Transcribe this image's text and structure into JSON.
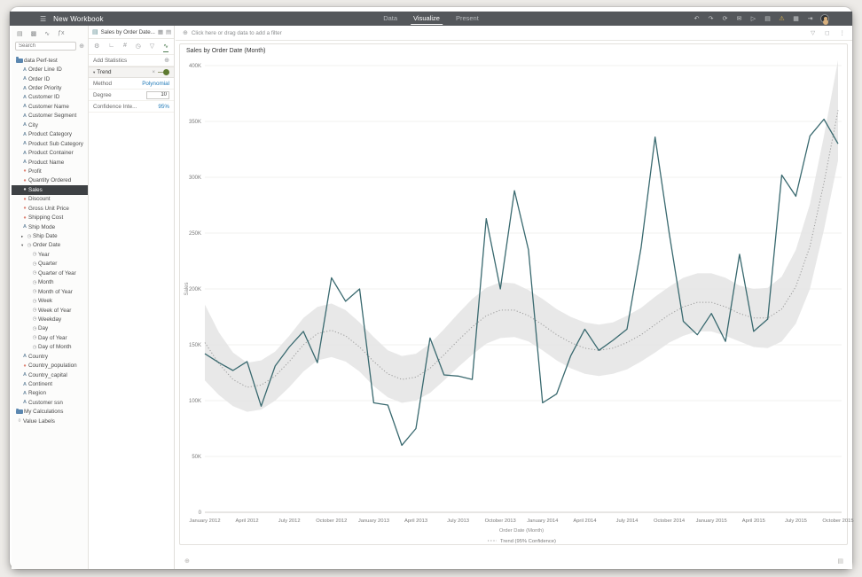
{
  "window": {
    "title": "New Workbook"
  },
  "navbar": {
    "menu_icon": "hamburger-menu-icon",
    "tabs": [
      {
        "label": "Data",
        "active": false
      },
      {
        "label": "Visualize",
        "active": true
      },
      {
        "label": "Present",
        "active": false
      }
    ],
    "icons": [
      {
        "name": "undo-icon",
        "glyph": "↶"
      },
      {
        "name": "redo-icon",
        "glyph": "↷"
      },
      {
        "name": "refresh-icon",
        "glyph": "⟳"
      },
      {
        "name": "mail-icon",
        "glyph": "✉"
      },
      {
        "name": "play-icon",
        "glyph": "▷"
      },
      {
        "name": "save-icon",
        "glyph": "▤"
      },
      {
        "name": "alert-icon",
        "glyph": "⚠",
        "warn": true
      },
      {
        "name": "grid-icon",
        "glyph": "▦"
      },
      {
        "name": "export-icon",
        "glyph": "⇥"
      }
    ]
  },
  "left_panel": {
    "toolbar_icons": [
      {
        "name": "clipboard-icon",
        "glyph": "▤"
      },
      {
        "name": "bar-chart-icon",
        "glyph": "▩"
      },
      {
        "name": "trend-arrow-icon",
        "glyph": "∿"
      },
      {
        "name": "function-icon",
        "glyph": "ƒx"
      }
    ],
    "search": {
      "placeholder": "Search",
      "options_icon": "⊕"
    },
    "fields": [
      {
        "label": "data Perf-test",
        "type": "folder"
      },
      {
        "label": "Order Line ID",
        "type": "dim"
      },
      {
        "label": "Order ID",
        "type": "dim"
      },
      {
        "label": "Order Priority",
        "type": "dim"
      },
      {
        "label": "Customer ID",
        "type": "dim"
      },
      {
        "label": "Customer Name",
        "type": "dim"
      },
      {
        "label": "Customer Segment",
        "type": "dim"
      },
      {
        "label": "City",
        "type": "dim"
      },
      {
        "label": "Product Category",
        "type": "dim"
      },
      {
        "label": "Product Sub Category",
        "type": "dim"
      },
      {
        "label": "Product Container",
        "type": "dim"
      },
      {
        "label": "Product Name",
        "type": "dim"
      },
      {
        "label": "Profit",
        "type": "measure"
      },
      {
        "label": "Quantity Ordered",
        "type": "measure"
      },
      {
        "label": "Sales",
        "type": "measure",
        "selected": true
      },
      {
        "label": "Discount",
        "type": "measure"
      },
      {
        "label": "Gross Unit Price",
        "type": "measure"
      },
      {
        "label": "Shipping Cost",
        "type": "measure"
      },
      {
        "label": "Ship Mode",
        "type": "dim"
      },
      {
        "label": "Ship Date",
        "type": "date-collapsed"
      },
      {
        "label": "Order Date",
        "type": "date-expanded"
      },
      {
        "label": "Year",
        "type": "date-child"
      },
      {
        "label": "Quarter",
        "type": "date-child"
      },
      {
        "label": "Quarter of Year",
        "type": "date-child"
      },
      {
        "label": "Month",
        "type": "date-child"
      },
      {
        "label": "Month of Year",
        "type": "date-child"
      },
      {
        "label": "Week",
        "type": "date-child"
      },
      {
        "label": "Week of Year",
        "type": "date-child"
      },
      {
        "label": "Weekday",
        "type": "date-child"
      },
      {
        "label": "Day",
        "type": "date-child"
      },
      {
        "label": "Day of Year",
        "type": "date-child"
      },
      {
        "label": "Day of Month",
        "type": "date-child"
      },
      {
        "label": "Country",
        "type": "dim"
      },
      {
        "label": "Country_population",
        "type": "measure"
      },
      {
        "label": "Country_capital",
        "type": "dim"
      },
      {
        "label": "Continent",
        "type": "dim"
      },
      {
        "label": "Region",
        "type": "dim"
      },
      {
        "label": "Customer ssn",
        "type": "dim"
      },
      {
        "label": "My Calculations",
        "type": "folder"
      },
      {
        "label": "Value Labels",
        "type": "tag"
      }
    ]
  },
  "properties_panel": {
    "tab_title": "Sales by Order Date...",
    "tab_icons": [
      {
        "name": "chart-type-icon",
        "glyph": "▦"
      },
      {
        "name": "layout-panel-icon",
        "glyph": "▤"
      }
    ],
    "section_icons": [
      {
        "name": "general-settings-icon",
        "glyph": "⚙"
      },
      {
        "name": "axis-icon",
        "glyph": "∟"
      },
      {
        "name": "values-icon",
        "glyph": "#"
      },
      {
        "name": "date-format-icon",
        "glyph": "◷"
      },
      {
        "name": "filter-icon",
        "glyph": "▽"
      },
      {
        "name": "analytics-icon",
        "glyph": "∿",
        "active": true
      }
    ],
    "add_statistics_label": "Add Statistics",
    "add_icon": "⊕",
    "trend": {
      "label": "Trend",
      "expanded": true,
      "toggle_on": true,
      "delete_icon": "×"
    },
    "method": {
      "label": "Method",
      "value": "Polynomial"
    },
    "degree": {
      "label": "Degree",
      "value": "10"
    },
    "confidence": {
      "label": "Confidence Inte...",
      "value": "95%"
    }
  },
  "filter_bar": {
    "hint": "Click here or drag data to add a filter",
    "add_icon": "⊕",
    "right_icons": [
      {
        "name": "filter-options-icon",
        "glyph": "▽"
      },
      {
        "name": "maximize-icon",
        "glyph": "◻"
      },
      {
        "name": "more-menu-icon",
        "glyph": "⋮"
      }
    ]
  },
  "canvas_footer": {
    "add_canvas_icon": "⊕",
    "canvas_options_icon": "▤"
  },
  "chart_data": {
    "type": "line",
    "title": "Sales by Order Date (Month)",
    "xlabel": "Order Date (Month)",
    "ylabel": "Sales",
    "legend_label": "Trend (95% Confidence)",
    "legend_position": "bottom-center",
    "grid": "horizontal",
    "unit": "thousands of Sales (K)",
    "ylim_k": [
      0,
      400
    ],
    "y_tick_labels": [
      "400K",
      "350K",
      "300K",
      "250K",
      "200K",
      "150K",
      "100K",
      "50K",
      "0"
    ],
    "x": [
      "January 2012",
      "February 2012",
      "March 2012",
      "April 2012",
      "May 2012",
      "June 2012",
      "July 2012",
      "August 2012",
      "September 2012",
      "October 2012",
      "November 2012",
      "December 2012",
      "January 2013",
      "February 2013",
      "March 2013",
      "April 2013",
      "May 2013",
      "June 2013",
      "July 2013",
      "August 2013",
      "September 2013",
      "October 2013",
      "November 2013",
      "December 2013",
      "January 2014",
      "February 2014",
      "March 2014",
      "April 2014",
      "May 2014",
      "June 2014",
      "July 2014",
      "August 2014",
      "September 2014",
      "October 2014",
      "November 2014",
      "December 2014",
      "January 2015",
      "February 2015",
      "March 2015",
      "April 2015",
      "May 2015",
      "June 2015",
      "July 2015",
      "August 2015",
      "September 2015",
      "October 2015"
    ],
    "x_tick_labels": [
      "January 2012",
      "April 2012",
      "July 2012",
      "October 2012",
      "January 2013",
      "April 2013",
      "July 2013",
      "October 2013",
      "January 2014",
      "April 2014",
      "July 2014",
      "October 2014",
      "January 2015",
      "April 2015",
      "July 2015",
      "October 2015"
    ],
    "series": [
      {
        "name": "Sales",
        "style": "solid",
        "color": "#39696f",
        "values_k": [
          142,
          134,
          127,
          135,
          95,
          131,
          148,
          162,
          134,
          210,
          189,
          200,
          98,
          96,
          60,
          75,
          156,
          123,
          122,
          119,
          263,
          200,
          288,
          235,
          98,
          106,
          140,
          164,
          145,
          154,
          164,
          237,
          336,
          250,
          171,
          159,
          178,
          153,
          231,
          162,
          173,
          302,
          283,
          337,
          352,
          330
        ]
      },
      {
        "name": "Trend (Polynomial, degree 10)",
        "style": "dotted",
        "color": "#9b9b9b",
        "values_k": [
          152,
          133,
          119,
          112,
          114,
          122,
          135,
          150,
          160,
          163,
          158,
          148,
          135,
          124,
          119,
          121,
          129,
          141,
          154,
          166,
          176,
          181,
          181,
          176,
          168,
          159,
          152,
          147,
          145,
          147,
          152,
          159,
          168,
          177,
          184,
          188,
          188,
          184,
          178,
          174,
          174,
          182,
          202,
          238,
          295,
          360
        ]
      }
    ],
    "confidence_band": {
      "name": "95% Confidence",
      "color": "#e4e4e4",
      "upper_k": [
        186,
        161,
        143,
        134,
        136,
        144,
        158,
        174,
        184,
        187,
        181,
        170,
        157,
        145,
        140,
        142,
        151,
        164,
        178,
        191,
        201,
        206,
        205,
        199,
        191,
        182,
        175,
        170,
        168,
        170,
        176,
        183,
        193,
        202,
        210,
        214,
        214,
        210,
        203,
        200,
        201,
        211,
        235,
        276,
        337,
        405
      ],
      "lower_k": [
        118,
        105,
        95,
        90,
        92,
        100,
        112,
        126,
        136,
        139,
        135,
        126,
        113,
        103,
        98,
        100,
        107,
        118,
        130,
        141,
        151,
        156,
        157,
        153,
        145,
        136,
        129,
        124,
        122,
        124,
        128,
        135,
        143,
        152,
        158,
        162,
        162,
        158,
        153,
        148,
        147,
        153,
        169,
        200,
        253,
        315
      ]
    }
  }
}
